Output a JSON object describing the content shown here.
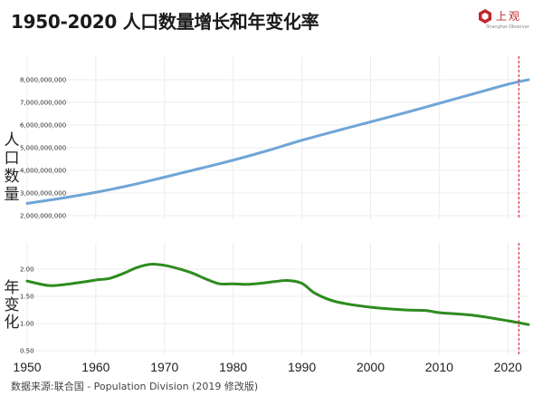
{
  "title": "1950-2020 人口数量增长和年变化率",
  "logo": {
    "name": "上观",
    "subtitle": "Shanghai Observer",
    "icon": "hexagon-logo-icon",
    "color": "#c0272d"
  },
  "source": "数据来源:联合国 - Population Division (2019 修改版)",
  "chart_data": [
    {
      "type": "line",
      "ylabel": "人口数量",
      "ylim": [
        2000000000,
        8000000000
      ],
      "yticks": [
        "2,000,000,000",
        "3,000,000,000",
        "4,000,000,000",
        "5,000,000,000",
        "6,000,000,000",
        "7,000,000,000",
        "8,000,000,000"
      ],
      "color": "#6fa6d6",
      "x": [
        1950,
        1955,
        1960,
        1965,
        1970,
        1975,
        1980,
        1985,
        1990,
        1995,
        2000,
        2005,
        2010,
        2015,
        2020,
        2023
      ],
      "values": [
        2540000000,
        2770000000,
        3030000000,
        3340000000,
        3700000000,
        4070000000,
        4450000000,
        4870000000,
        5330000000,
        5740000000,
        6140000000,
        6540000000,
        6960000000,
        7380000000,
        7800000000,
        8000000000
      ]
    },
    {
      "type": "line",
      "ylabel": "年变化",
      "ylim": [
        0.5,
        2.0
      ],
      "yticks": [
        "0.50",
        "1.00",
        "1.50",
        "2.00"
      ],
      "color": "#2e8b1f",
      "x": [
        1950,
        1953,
        1955,
        1958,
        1960,
        1962,
        1964,
        1966,
        1968,
        1970,
        1972,
        1974,
        1976,
        1978,
        1980,
        1982,
        1984,
        1986,
        1988,
        1990,
        1992,
        1995,
        2000,
        2005,
        2008,
        2010,
        2015,
        2020,
        2023
      ],
      "values": [
        1.78,
        1.7,
        1.71,
        1.76,
        1.8,
        1.83,
        1.92,
        2.03,
        2.09,
        2.07,
        2.01,
        1.93,
        1.82,
        1.73,
        1.73,
        1.72,
        1.74,
        1.77,
        1.79,
        1.74,
        1.55,
        1.4,
        1.3,
        1.25,
        1.24,
        1.2,
        1.15,
        1.05,
        0.98
      ]
    }
  ],
  "xaxis": {
    "ticks": [
      "1950",
      "1960",
      "1970",
      "1980",
      "1990",
      "2000",
      "2010",
      "2020"
    ],
    "range": [
      1950,
      2023
    ]
  },
  "marker": {
    "x": 2020,
    "color": "#d0021b",
    "style": "dashed"
  },
  "grid": true
}
